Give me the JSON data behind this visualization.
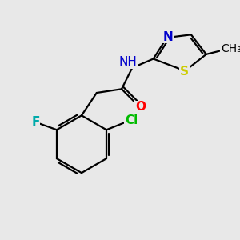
{
  "background_color": "#e8e8e8",
  "atom_colors": {
    "N": "#0000cc",
    "O": "#ff0000",
    "S": "#cccc00",
    "Cl": "#00bb00",
    "F": "#00aaaa",
    "C": "#000000"
  },
  "font_size": 11
}
